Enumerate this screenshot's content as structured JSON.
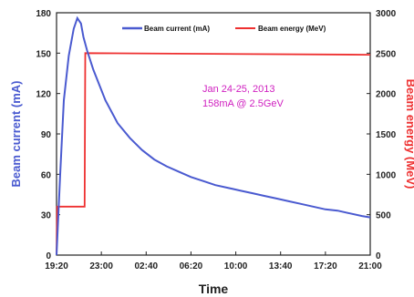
{
  "chart_data": {
    "type": "line",
    "xlabel": "Time",
    "ylabel_left": "Beam current (mA)",
    "ylabel_right": "Beam energy (MeV)",
    "x_ticks": [
      "19:20",
      "23:00",
      "02:40",
      "06:20",
      "10:00",
      "13:40",
      "17:20",
      "21:00"
    ],
    "xlim_hours": [
      0,
      25.67
    ],
    "ylim_left": [
      0,
      180
    ],
    "ylim_right": [
      0,
      3000
    ],
    "y_ticks_left": [
      0,
      30,
      60,
      90,
      120,
      150,
      180
    ],
    "y_ticks_right": [
      0,
      500,
      1000,
      1500,
      2000,
      2500,
      3000
    ],
    "annotations": [
      "Jan 24-25, 2013",
      "158mA @ 2.5GeV"
    ],
    "colors": {
      "current": "#4a5ad0",
      "energy": "#ee3030",
      "annotation": "#d020c0"
    },
    "series": [
      {
        "name": "Beam current (mA)",
        "axis": "left",
        "x_hours": [
          0.0,
          0.3,
          0.6,
          1.0,
          1.4,
          1.7,
          2.0,
          2.2,
          2.5,
          3.0,
          4.0,
          5.0,
          6.0,
          7.0,
          8.0,
          9.0,
          10.0,
          11.0,
          12.0,
          13.0,
          14.0,
          15.0,
          16.0,
          17.0,
          18.0,
          19.0,
          20.0,
          21.0,
          22.0,
          23.0,
          24.0,
          25.0,
          25.67
        ],
        "values": [
          0,
          60,
          115,
          148,
          168,
          176,
          172,
          162,
          152,
          138,
          115,
          98,
          87,
          78,
          71,
          66,
          62,
          58,
          55,
          52,
          50,
          48,
          46,
          44,
          42,
          40,
          38,
          36,
          34,
          33,
          31,
          29,
          28
        ]
      },
      {
        "name": "Beam energy (MeV)",
        "axis": "right",
        "x_hours": [
          0.0,
          0.05,
          1.7,
          2.3,
          2.35,
          25.67
        ],
        "values": [
          0,
          600,
          600,
          600,
          2500,
          2480
        ]
      }
    ]
  }
}
